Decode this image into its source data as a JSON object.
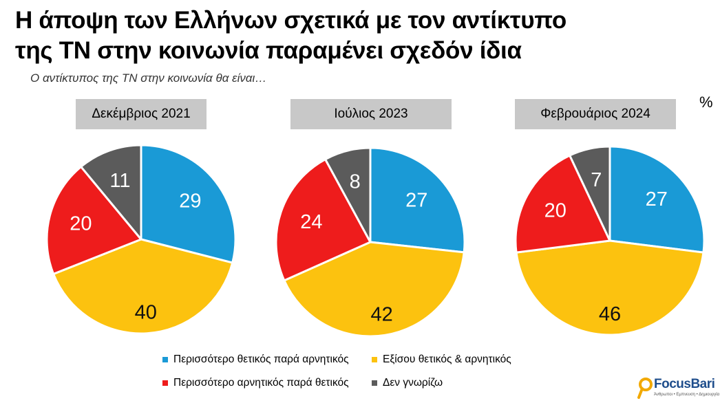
{
  "title": {
    "line1": "Η άποψη των Ελλήνων σχετικά με τον αντίκτυπο",
    "line2": "της ΤΝ στην κοινωνία παραμένει σχεδόν ίδια"
  },
  "subtitle": "Ο αντίκτυπος της ΤΝ στην κοινωνία θα είναι…",
  "unit_label": "%",
  "colors": {
    "positive": "#1a9ad6",
    "equal": "#fcc20f",
    "negative": "#ee1c1c",
    "dont_know": "#5b5b5b",
    "period_box": "#c8c8c8"
  },
  "legend": [
    {
      "key": "positive",
      "label": "Περισσότερο θετικός παρά αρνητικός"
    },
    {
      "key": "equal",
      "label": "Εξίσου θετικός & αρνητικός"
    },
    {
      "key": "negative",
      "label": "Περισσότερο αρνητικός παρά θετικός"
    },
    {
      "key": "dont_know",
      "label": "Δεν γνωρίζω"
    }
  ],
  "chart_data": [
    {
      "type": "pie",
      "title": "Δεκέμβριος 2021",
      "slices": [
        {
          "key": "positive",
          "value": 29
        },
        {
          "key": "equal",
          "value": 40
        },
        {
          "key": "negative",
          "value": 20
        },
        {
          "key": "dont_know",
          "value": 11
        }
      ]
    },
    {
      "type": "pie",
      "title": "Ιούλιος 2023",
      "slices": [
        {
          "key": "positive",
          "value": 27
        },
        {
          "key": "equal",
          "value": 42
        },
        {
          "key": "negative",
          "value": 24
        },
        {
          "key": "dont_know",
          "value": 8
        }
      ]
    },
    {
      "type": "pie",
      "title": "Φεβρουάριος 2024",
      "slices": [
        {
          "key": "positive",
          "value": 27
        },
        {
          "key": "equal",
          "value": 46
        },
        {
          "key": "negative",
          "value": 20
        },
        {
          "key": "dont_know",
          "value": 7
        }
      ]
    }
  ],
  "logo": {
    "name": "FocusBari",
    "tagline": "Άνθρωποι • Εμπνευση • Δημιουργία"
  }
}
